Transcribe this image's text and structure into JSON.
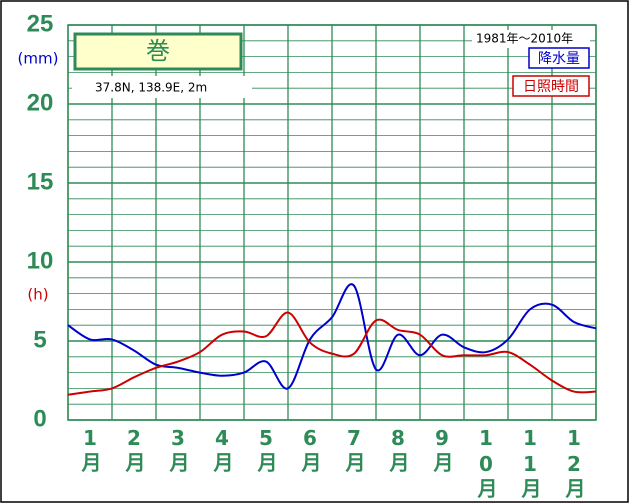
{
  "chart_data": {
    "type": "line",
    "title": "巻",
    "subtitle": "37.8N,  138.9E,  2m",
    "period": "1981年〜2010年",
    "ylabel": "(mm)",
    "ylabel2": "(h)",
    "categories": [
      "1月",
      "2月",
      "3月",
      "4月",
      "5月",
      "6月",
      "7月",
      "8月",
      "9月",
      "10月",
      "11月",
      "12月"
    ],
    "x": [
      0,
      0.5,
      1,
      1.5,
      2,
      2.5,
      3,
      3.5,
      4,
      4.5,
      5,
      5.5,
      6,
      6.5,
      7,
      7.5,
      8,
      8.5,
      9,
      9.5,
      10,
      10.5,
      11,
      11.5,
      12
    ],
    "xlim": [
      0,
      12
    ],
    "ylim": [
      0,
      25
    ],
    "yticks": [
      0,
      5,
      10,
      15,
      20,
      25
    ],
    "grid": true,
    "legend_position": "upper right",
    "series": [
      {
        "name": "降水量",
        "color": "#0000cc",
        "values": [
          6.0,
          5.1,
          5.1,
          4.4,
          3.5,
          3.3,
          3.0,
          2.8,
          3.0,
          3.7,
          2.0,
          5.1,
          6.5,
          8.5,
          3.2,
          5.4,
          4.1,
          5.4,
          4.6,
          4.3,
          5.1,
          7.0,
          7.3,
          6.2,
          5.8
        ]
      },
      {
        "name": "日照時間",
        "color": "#cc0000",
        "values": [
          1.6,
          1.8,
          2.0,
          2.7,
          3.3,
          3.7,
          4.3,
          5.4,
          5.6,
          5.3,
          6.8,
          4.9,
          4.2,
          4.2,
          6.3,
          5.7,
          5.4,
          4.1,
          4.1,
          4.1,
          4.3,
          3.5,
          2.5,
          1.8,
          1.8
        ]
      }
    ]
  }
}
